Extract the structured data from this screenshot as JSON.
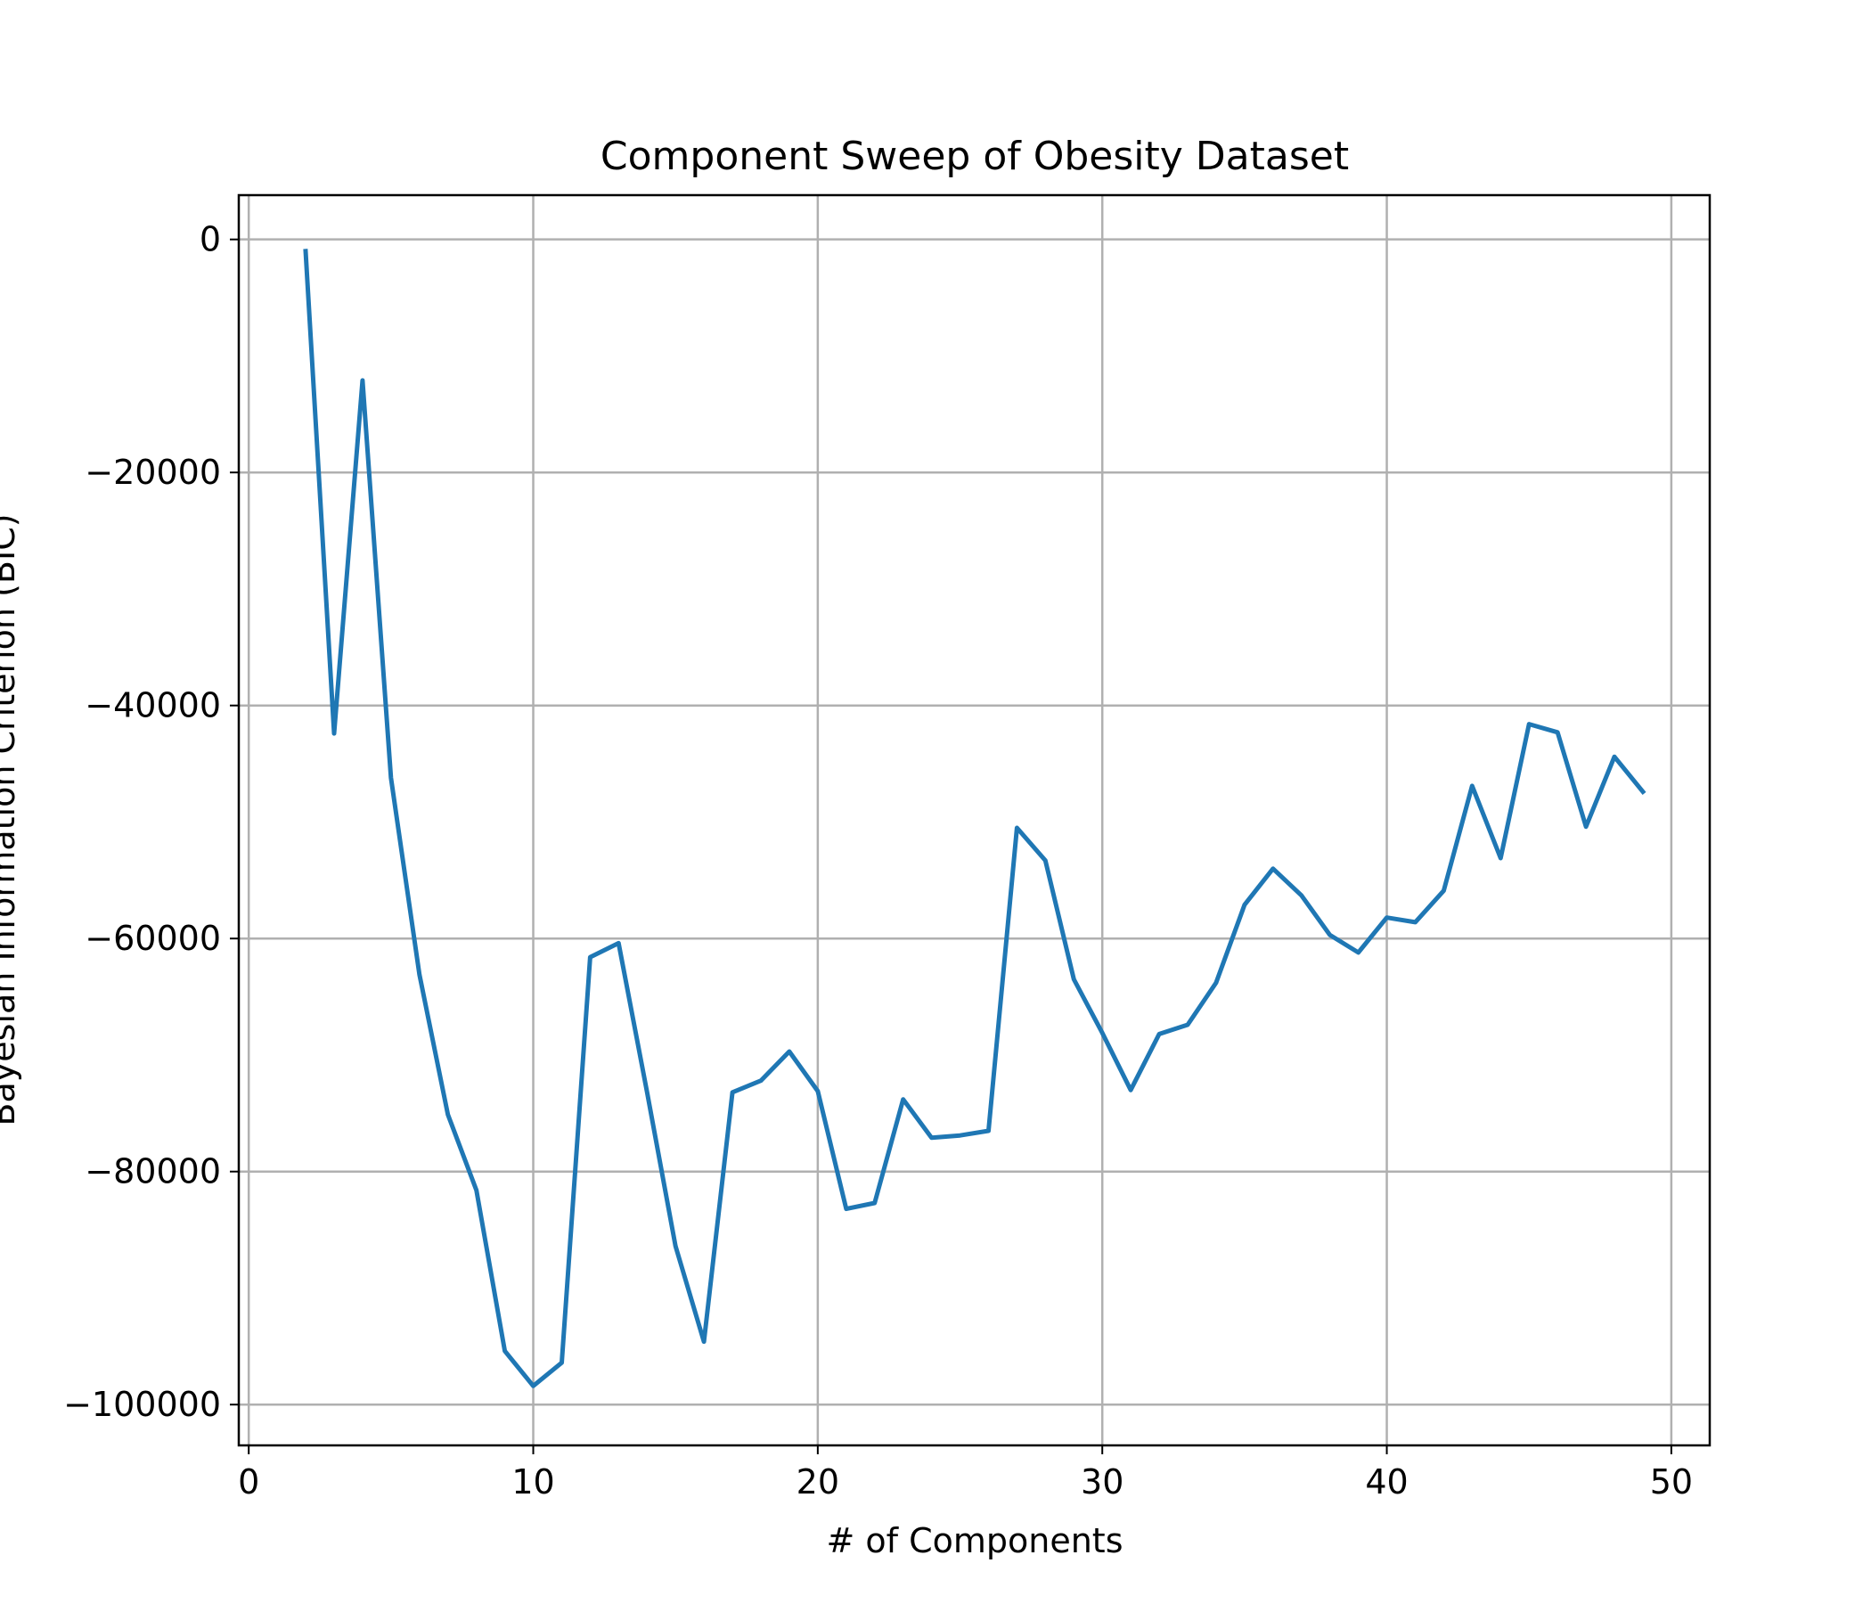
{
  "chart_data": {
    "type": "line",
    "title": "Component Sweep of Obesity Dataset",
    "xlabel": "# of Components",
    "ylabel": "Bayesian Information Criterion (BIC)",
    "xlim": [
      -0.35,
      51.35
    ],
    "ylim": [
      -103500,
      3800
    ],
    "xticks": [
      0,
      10,
      20,
      30,
      40,
      50
    ],
    "xtick_labels": [
      "0",
      "10",
      "20",
      "30",
      "40",
      "50"
    ],
    "yticks": [
      0,
      -20000,
      -40000,
      -60000,
      -80000,
      -100000
    ],
    "ytick_labels": [
      "0",
      "−20000",
      "−40000",
      "−60000",
      "−80000",
      "−100000"
    ],
    "grid": true,
    "series": [
      {
        "color": "#1f77b4",
        "x": [
          2,
          3,
          4,
          5,
          6,
          7,
          8,
          9,
          10,
          11,
          12,
          13,
          14,
          15,
          16,
          17,
          18,
          19,
          20,
          21,
          22,
          23,
          24,
          25,
          26,
          27,
          28,
          29,
          30,
          31,
          32,
          33,
          34,
          35,
          36,
          37,
          38,
          39,
          40,
          41,
          42,
          43,
          44,
          45,
          46,
          47,
          48,
          49
        ],
        "values": [
          -1000,
          -42400,
          -12100,
          -46200,
          -63100,
          -75100,
          -81600,
          -95400,
          -98400,
          -96400,
          -61600,
          -60400,
          -73200,
          -86400,
          -94600,
          -73200,
          -72200,
          -69700,
          -73100,
          -83200,
          -82700,
          -73800,
          -77100,
          -76900,
          -76500,
          -50500,
          -53300,
          -63500,
          -68100,
          -73000,
          -68200,
          -67400,
          -63800,
          -57100,
          -54000,
          -56300,
          -59700,
          -61200,
          -58200,
          -58600,
          -55900,
          -46900,
          -53100,
          -41600,
          -42300,
          -50400,
          -44400,
          -47400
        ]
      }
    ]
  }
}
